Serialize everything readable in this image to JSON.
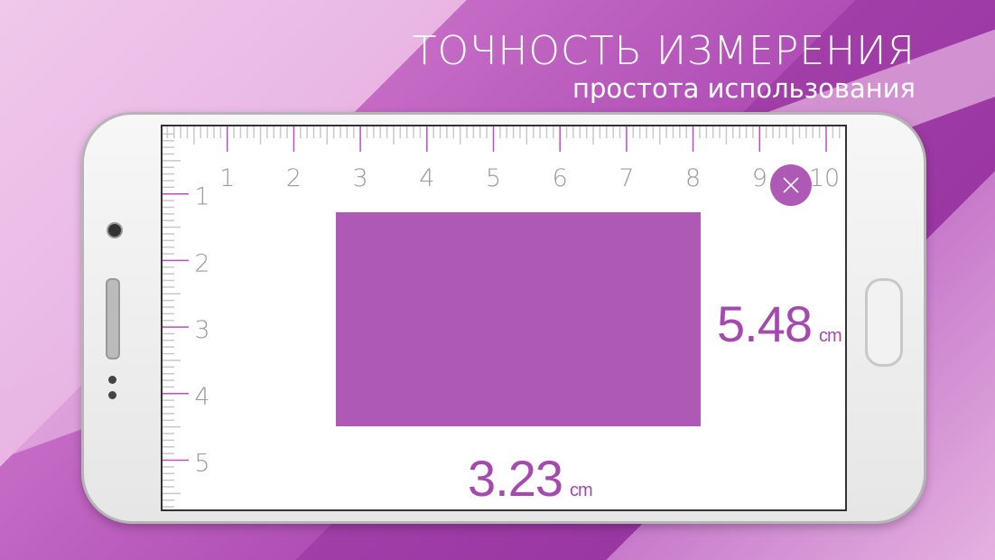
{
  "headline": {
    "title": "ТОЧНОСТЬ ИЗМЕРЕНИЯ",
    "subtitle": "простота использования"
  },
  "ruler": {
    "horizontal_labels": [
      "1",
      "2",
      "3",
      "4",
      "5",
      "6",
      "7",
      "8",
      "9",
      "10"
    ],
    "vertical_labels": [
      "1",
      "2",
      "3",
      "4",
      "5"
    ],
    "unit": "cm"
  },
  "measurement": {
    "height": "5.48",
    "height_unit": "cm",
    "width": "3.23",
    "width_unit": "cm"
  },
  "close_icon": "close-icon",
  "colors": {
    "accent": "#af59b7",
    "tick_major": "#c04bc4",
    "tick_minor": "#c8c8c8",
    "label": "#9b9b9b"
  }
}
